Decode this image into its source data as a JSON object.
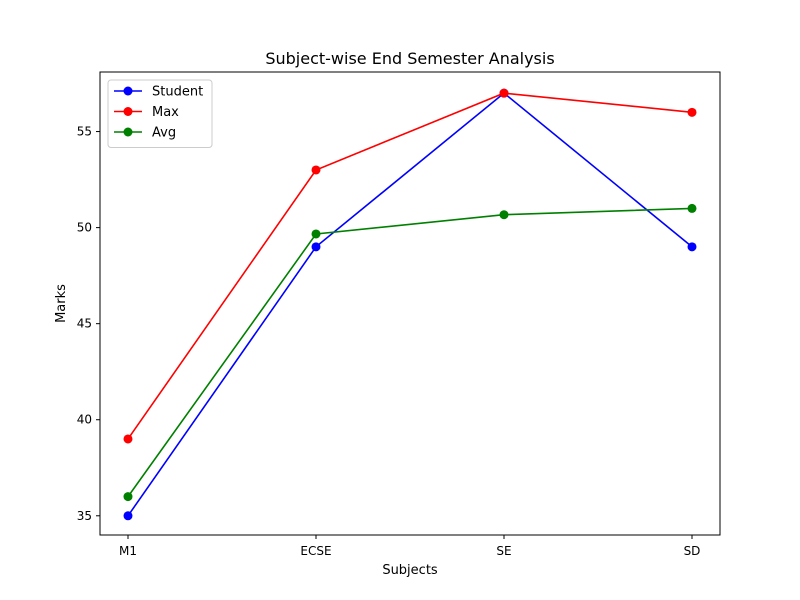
{
  "chart_data": {
    "type": "line",
    "title": "Subject-wise End Semester Analysis",
    "xlabel": "Subjects",
    "ylabel": "Marks",
    "categories": [
      "M1",
      "ECSE",
      "SE",
      "SD"
    ],
    "yticks": [
      35,
      40,
      45,
      50,
      55
    ],
    "ylim": [
      34.0,
      58.1
    ],
    "grid": false,
    "legend_position": "top-left",
    "series": [
      {
        "name": "Student",
        "color": "#0000ff",
        "values": [
          35,
          49,
          57,
          49
        ]
      },
      {
        "name": "Max",
        "color": "#ff0000",
        "values": [
          39,
          53,
          57,
          56
        ]
      },
      {
        "name": "Avg",
        "color": "#008000",
        "values": [
          36,
          49.67,
          50.67,
          51
        ]
      }
    ]
  }
}
